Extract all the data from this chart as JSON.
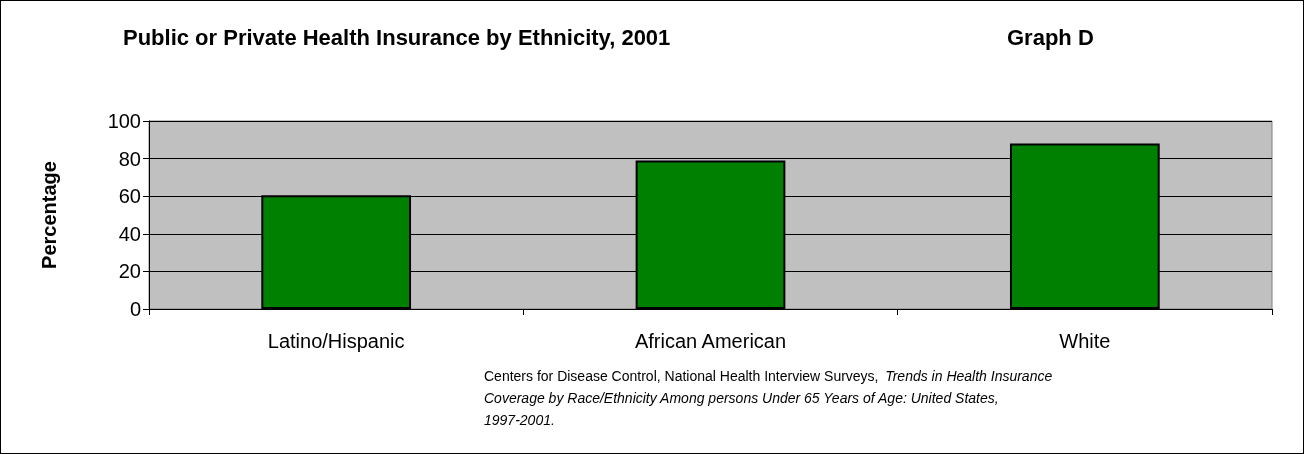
{
  "chart_data": {
    "type": "bar",
    "title": "Public or Private Health Insurance by Ethnicity, 2001",
    "subtitle": "Graph D",
    "ylabel": "Percentage",
    "categories": [
      "Latino/Hispanic",
      "African American",
      "White"
    ],
    "values": [
      60.5,
      79,
      88
    ],
    "color": "#008000",
    "ylim": [
      0,
      100
    ],
    "yticks": [
      0,
      20,
      40,
      60,
      80,
      100
    ],
    "grid": "y",
    "annotations": [
      "Centers for Disease Control, National Health Interview Surveys,",
      "Trends in Health Insurance Coverage by Race/Ethnicity Among persons Under 65 Years of Age: United States, 1997-2001."
    ]
  }
}
